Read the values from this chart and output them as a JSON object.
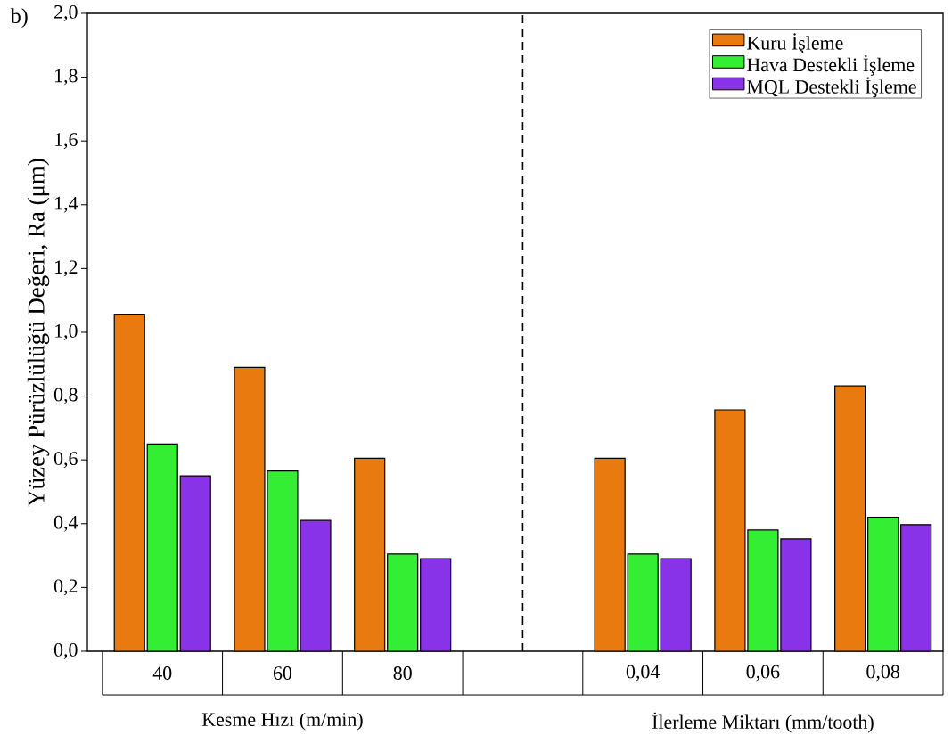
{
  "chart_data": {
    "type": "bar",
    "title": "b)",
    "xlabel": "Kesme Hızı (m/min)",
    "ylabel": "Yüzey Pürüzlülüğü Değeri, Ra (μm)",
    "annotations": [
      "İlerleme Miktarı (mm/tooth)"
    ],
    "categories": [
      "40",
      "60",
      "80",
      null,
      "0,04",
      "0,06",
      "0,08"
    ],
    "series": [
      {
        "name": "Kuru İşleme",
        "color": "#e87a10",
        "values": [
          1.055,
          0.89,
          0.605,
          null,
          0.605,
          0.757,
          0.832
        ]
      },
      {
        "name": "Hava Destekli İşleme",
        "color": "#33ee33",
        "values": [
          0.65,
          0.565,
          0.305,
          null,
          0.305,
          0.38,
          0.42
        ]
      },
      {
        "name": "MQL Destekli İşleme",
        "color": "#8833e8",
        "values": [
          0.55,
          0.41,
          0.29,
          null,
          0.29,
          0.352,
          0.397
        ]
      }
    ],
    "ylim": [
      0,
      2
    ],
    "yticks": [
      {
        "value": 0,
        "label": "0,0"
      },
      {
        "value": 0.2,
        "label": "0,2"
      },
      {
        "value": 0.4,
        "label": "0,4"
      },
      {
        "value": 0.6,
        "label": "0,6"
      },
      {
        "value": 0.8,
        "label": "0,8"
      },
      {
        "value": 1,
        "label": "1,0"
      },
      {
        "value": 1.2,
        "label": "1,2"
      },
      {
        "value": 1.4,
        "label": "1,4"
      },
      {
        "value": 1.6,
        "label": "1,6"
      },
      {
        "value": 1.8,
        "label": "1,8"
      },
      {
        "value": 2,
        "label": "2,0"
      }
    ],
    "legend": "top right"
  }
}
